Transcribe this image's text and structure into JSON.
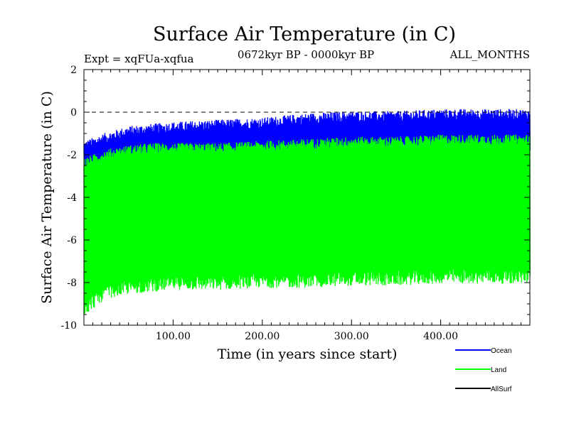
{
  "chart_data": {
    "type": "line",
    "title": "Surface Air Temperature (in C)",
    "subtitle": "0672kyr BP - 0000kyr BP",
    "experiment": "Expt = xqFUa-xqfua",
    "months_label": "ALL_MONTHS",
    "xlabel": "Time (in years since start)",
    "ylabel": "Surface Air Temperature (in C)",
    "xlim": [
      0,
      500
    ],
    "ylim": [
      -10,
      2
    ],
    "x_ticks": [
      100,
      200,
      300,
      400
    ],
    "x_tick_labels": [
      "100.00",
      "200.00",
      "300.00",
      "400.00"
    ],
    "y_ticks": [
      -10,
      -8,
      -6,
      -4,
      -2,
      0,
      2
    ],
    "y_tick_labels": [
      "-10",
      "-8",
      "-6",
      "-4",
      "-2",
      "0",
      "2"
    ],
    "reference_line": 0,
    "series": [
      {
        "name": "Ocean",
        "color": "#0000ff",
        "x": [
          0,
          25,
          50,
          75,
          100,
          150,
          200,
          250,
          300,
          350,
          400,
          450,
          500
        ],
        "upper": [
          -1.6,
          -1.2,
          -0.9,
          -0.8,
          -0.7,
          -0.6,
          -0.5,
          -0.3,
          -0.2,
          -0.2,
          -0.1,
          -0.1,
          -0.1
        ],
        "lower": [
          -2.8,
          -2.4,
          -2.2,
          -2.1,
          -2.0,
          -2.0,
          -1.9,
          -1.8,
          -1.7,
          -1.7,
          -1.6,
          -1.6,
          -1.6
        ]
      },
      {
        "name": "Land",
        "color": "#00ff00",
        "x": [
          0,
          25,
          50,
          75,
          100,
          150,
          200,
          250,
          300,
          350,
          400,
          450,
          500
        ],
        "upper": [
          -2.4,
          -2.0,
          -1.8,
          -1.7,
          -1.7,
          -1.7,
          -1.6,
          -1.5,
          -1.4,
          -1.4,
          -1.3,
          -1.3,
          -1.3
        ],
        "lower": [
          -9.2,
          -8.4,
          -8.2,
          -8.1,
          -8.0,
          -8.0,
          -7.9,
          -7.9,
          -7.8,
          -7.8,
          -7.7,
          -7.7,
          -7.7
        ]
      },
      {
        "name": "AllSurf",
        "color": "#000000",
        "x": [],
        "upper": [],
        "lower": []
      }
    ],
    "legend_position": "bottom-right"
  }
}
